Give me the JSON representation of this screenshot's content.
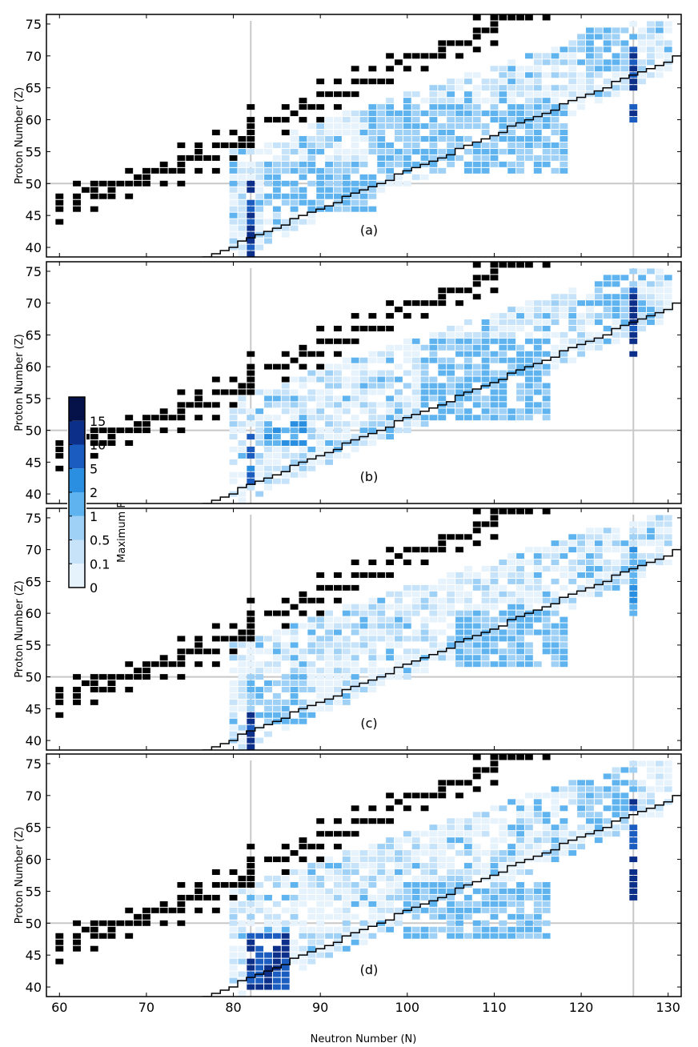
{
  "figure": {
    "xlabel": "Neutron Number (N)",
    "ylabel": "Proton Number (Z)",
    "colorbar_label": "Maximum F",
    "x_ticks": [
      60,
      70,
      80,
      90,
      100,
      110,
      120,
      130
    ],
    "y_ticks": [
      40,
      45,
      50,
      55,
      60,
      65,
      70,
      75
    ],
    "colorbar_ticks": [
      "0",
      "0.1",
      "0.5",
      "1",
      "2",
      "5",
      "10",
      "15"
    ],
    "colorbar_colors": [
      "#ffffff",
      "#e6f2fc",
      "#c6e3fa",
      "#9fd0f5",
      "#5fb4ef",
      "#2a8fe0",
      "#1a5cc0",
      "#0c2f8a",
      "#05124a"
    ],
    "stable_color": "#000000",
    "guide_color": "#c8c8c8"
  },
  "chart_data": [
    {
      "type": "heatmap",
      "panel_label": "(a)",
      "xlim": [
        58.5,
        131.5
      ],
      "ylim": [
        38.5,
        76.5
      ],
      "magic_numbers": {
        "N": [
          82,
          126
        ],
        "Z": [
          50
        ]
      },
      "peak_regions": [
        {
          "N": 82,
          "Z": [
            38,
            50
          ],
          "level": 7
        },
        {
          "N": 126,
          "Z": [
            60,
            72
          ],
          "level": 7
        },
        {
          "N": [
            84,
            96
          ],
          "Z": [
            46,
            53
          ],
          "level": 4
        },
        {
          "N": [
            96,
            118
          ],
          "Z": [
            52,
            62
          ],
          "level": 4
        },
        {
          "N": [
            120,
            126
          ],
          "Z": [
            68,
            74
          ],
          "level": 4
        }
      ]
    },
    {
      "type": "heatmap",
      "panel_label": "(b)",
      "xlim": [
        58.5,
        131.5
      ],
      "ylim": [
        38.5,
        76.5
      ],
      "magic_numbers": {
        "N": [
          82,
          126
        ],
        "Z": [
          50
        ]
      },
      "peak_regions": [
        {
          "N": 82,
          "Z": [
            42,
            50
          ],
          "level": 6
        },
        {
          "N": 126,
          "Z": [
            62,
            72
          ],
          "level": 7
        },
        {
          "N": [
            84,
            88
          ],
          "Z": [
            48,
            51
          ],
          "level": 5
        },
        {
          "N": [
            102,
            116
          ],
          "Z": [
            52,
            64
          ],
          "level": 4
        },
        {
          "N": [
            122,
            126
          ],
          "Z": [
            68,
            74
          ],
          "level": 4
        }
      ]
    },
    {
      "type": "heatmap",
      "panel_label": "(c)",
      "xlim": [
        58.5,
        131.5
      ],
      "ylim": [
        38.5,
        76.5
      ],
      "magic_numbers": {
        "N": [
          82,
          126
        ],
        "Z": [
          50
        ]
      },
      "peak_regions": [
        {
          "N": 82,
          "Z": [
            38,
            44
          ],
          "level": 7
        },
        {
          "N": [
            82,
            88
          ],
          "Z": [
            43,
            50
          ],
          "level": 4
        },
        {
          "N": 126,
          "Z": [
            60,
            70
          ],
          "level": 5
        },
        {
          "N": [
            106,
            118
          ],
          "Z": [
            52,
            60
          ],
          "level": 4
        }
      ]
    },
    {
      "type": "heatmap",
      "panel_label": "(d)",
      "xlim": [
        58.5,
        131.5
      ],
      "ylim": [
        38.5,
        76.5
      ],
      "magic_numbers": {
        "N": [
          82,
          126
        ],
        "Z": [
          50
        ]
      },
      "peak_regions": [
        {
          "N": [
            82,
            86
          ],
          "Z": [
            40,
            48
          ],
          "level": 7
        },
        {
          "N": 126,
          "Z": [
            54,
            70
          ],
          "level": 7
        },
        {
          "N": [
            120,
            126
          ],
          "Z": [
            66,
            73
          ],
          "level": 4
        },
        {
          "N": [
            100,
            116
          ],
          "Z": [
            48,
            56
          ],
          "level": 4
        }
      ]
    }
  ]
}
